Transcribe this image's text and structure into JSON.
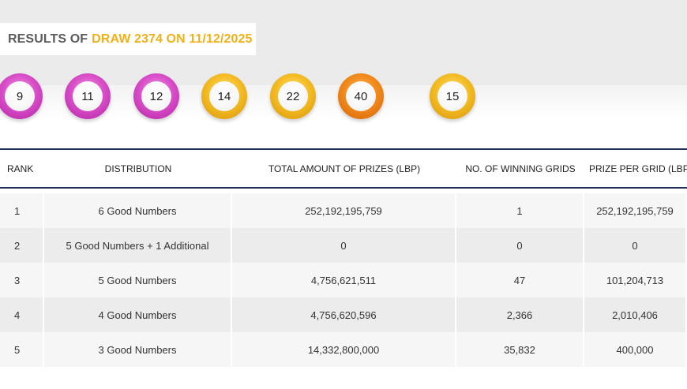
{
  "title": {
    "prefix": "RESULTS OF",
    "accent": "DRAW 2374 ON 11/12/2025"
  },
  "balls": [
    {
      "number": "9",
      "color": "#d94fc8"
    },
    {
      "number": "11",
      "color": "#d94fc8"
    },
    {
      "number": "12",
      "color": "#d94fc8"
    },
    {
      "number": "14",
      "color": "#f4bd25"
    },
    {
      "number": "22",
      "color": "#f4bd25"
    },
    {
      "number": "40",
      "color": "#f28a1c"
    },
    {
      "number": "15",
      "color": "#f4bd25"
    }
  ],
  "table": {
    "headers": {
      "rank": "RANK",
      "distribution": "DISTRIBUTION",
      "total": "TOTAL AMOUNT OF PRIZES (LBP)",
      "winning": "NO. OF WINNING GRIDS",
      "per_grid": "PRIZE PER GRID (LBP)"
    },
    "rows": [
      {
        "rank": "1",
        "distribution": "6 Good Numbers",
        "total": "252,192,195,759",
        "winning": "1",
        "per_grid": "252,192,195,759"
      },
      {
        "rank": "2",
        "distribution": "5 Good Numbers + 1 Additional",
        "total": "0",
        "winning": "0",
        "per_grid": "0"
      },
      {
        "rank": "3",
        "distribution": "5 Good Numbers",
        "total": "4,756,621,511",
        "winning": "47",
        "per_grid": "101,204,713"
      },
      {
        "rank": "4",
        "distribution": "4 Good Numbers",
        "total": "4,756,620,596",
        "winning": "2,366",
        "per_grid": "2,010,406"
      },
      {
        "rank": "5",
        "distribution": "3 Good Numbers",
        "total": "14,332,800,000",
        "winning": "35,832",
        "per_grid": "400,000"
      }
    ]
  },
  "colors": {
    "accent": "#f0b117",
    "header_line": "#1f2f56",
    "pink": "#d94fc8",
    "yellow": "#f4bd25",
    "orange": "#f28a1c"
  }
}
